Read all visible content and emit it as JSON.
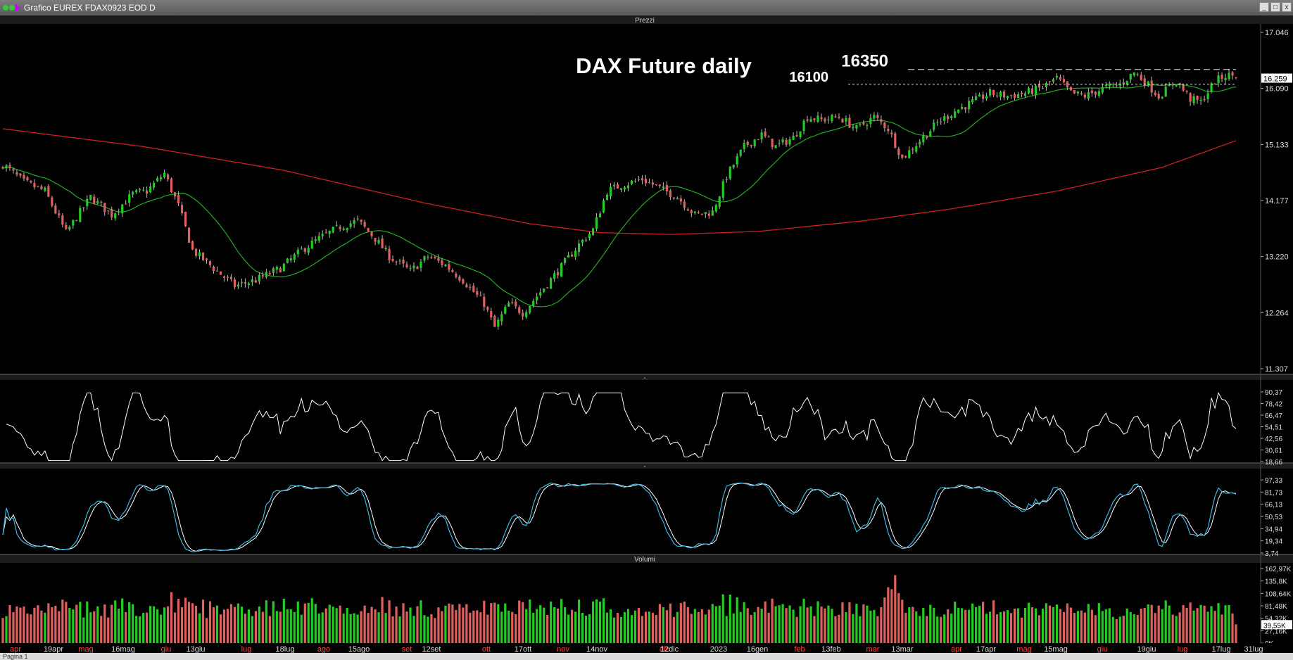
{
  "window": {
    "title": "Grafico EUREX FDAX0923 EOD D",
    "controls": [
      "_",
      "□",
      "x"
    ]
  },
  "panels": {
    "price": {
      "label": "Prezzi"
    },
    "rsi": {
      "label": "-"
    },
    "stoch": {
      "label": "-"
    },
    "volume": {
      "label": "Volumi"
    }
  },
  "statusbar": {
    "page_label": "Pagina 1"
  },
  "colors": {
    "bull": "#22cc22",
    "bear": "#e06060",
    "ma_short": "#22aa22",
    "ma_long": "#cc2020",
    "rsi": "#ffffff",
    "stoch_k": "#3ab8e0",
    "stoch_d": "#ffffff",
    "background": "#000000"
  },
  "chart_data": [
    {
      "type": "candlestick",
      "title": "DAX Future daily",
      "y_ticks": [
        17046,
        16090,
        15133,
        14177,
        13220,
        12264,
        11307
      ],
      "y_tick_labels": [
        "17.046",
        "16.090",
        "15.133",
        "14.177",
        "13.220",
        "12.264",
        "11.307"
      ],
      "ylim": [
        11307,
        17046
      ],
      "last_price_label": "16.259",
      "last_price": 16259,
      "annotations": [
        {
          "text": "16350",
          "value": 16350,
          "style": "dashed"
        },
        {
          "text": "16100",
          "value": 16100,
          "style": "dashed"
        }
      ],
      "x_labels": [
        {
          "text": "apr",
          "color": "red"
        },
        {
          "text": "19apr",
          "color": "white"
        },
        {
          "text": "mag",
          "color": "red"
        },
        {
          "text": "16mag",
          "color": "white"
        },
        {
          "text": "giu",
          "color": "red"
        },
        {
          "text": "13giu",
          "color": "white"
        },
        {
          "text": "lug",
          "color": "red"
        },
        {
          "text": "18lug",
          "color": "white"
        },
        {
          "text": "ago",
          "color": "red"
        },
        {
          "text": "15ago",
          "color": "white"
        },
        {
          "text": "set",
          "color": "red"
        },
        {
          "text": "12set",
          "color": "white"
        },
        {
          "text": "ott",
          "color": "red"
        },
        {
          "text": "17ott",
          "color": "white"
        },
        {
          "text": "nov",
          "color": "red"
        },
        {
          "text": "14nov",
          "color": "white"
        },
        {
          "text": "dic",
          "color": "red"
        },
        {
          "text": "12dic",
          "color": "white"
        },
        {
          "text": "2023",
          "color": "white"
        },
        {
          "text": "16gen",
          "color": "white"
        },
        {
          "text": "feb",
          "color": "red"
        },
        {
          "text": "13feb",
          "color": "white"
        },
        {
          "text": "mar",
          "color": "red"
        },
        {
          "text": "13mar",
          "color": "white"
        },
        {
          "text": "apr",
          "color": "red"
        },
        {
          "text": "17apr",
          "color": "white"
        },
        {
          "text": "mag",
          "color": "red"
        },
        {
          "text": "15mag",
          "color": "white"
        },
        {
          "text": "giu",
          "color": "red"
        },
        {
          "text": "19giu",
          "color": "white"
        },
        {
          "text": "lug",
          "color": "red"
        },
        {
          "text": "17lug",
          "color": "white"
        },
        {
          "text": "31lug",
          "color": "white"
        }
      ],
      "close_anchors": [
        [
          0,
          14750
        ],
        [
          6,
          14450
        ],
        [
          12,
          14300
        ],
        [
          18,
          13600
        ],
        [
          25,
          14200
        ],
        [
          31,
          13900
        ],
        [
          37,
          14250
        ],
        [
          41,
          14300
        ],
        [
          46,
          14600
        ],
        [
          50,
          14050
        ],
        [
          54,
          13300
        ],
        [
          60,
          13000
        ],
        [
          66,
          12700
        ],
        [
          72,
          12800
        ],
        [
          79,
          13000
        ],
        [
          85,
          13300
        ],
        [
          90,
          13500
        ],
        [
          96,
          13700
        ],
        [
          101,
          13800
        ],
        [
          106,
          13500
        ],
        [
          110,
          13200
        ],
        [
          116,
          12950
        ],
        [
          121,
          13200
        ],
        [
          126,
          13050
        ],
        [
          131,
          12800
        ],
        [
          137,
          12400
        ],
        [
          140,
          12000
        ],
        [
          144,
          12400
        ],
        [
          148,
          12250
        ],
        [
          153,
          12600
        ],
        [
          158,
          12950
        ],
        [
          164,
          13400
        ],
        [
          168,
          13650
        ],
        [
          172,
          14300
        ],
        [
          176,
          14400
        ],
        [
          182,
          14500
        ],
        [
          187,
          14350
        ],
        [
          192,
          14200
        ],
        [
          197,
          13900
        ],
        [
          202,
          13950
        ],
        [
          206,
          14550
        ],
        [
          211,
          15050
        ],
        [
          216,
          15250
        ],
        [
          220,
          15050
        ],
        [
          225,
          15200
        ],
        [
          229,
          15550
        ],
        [
          233,
          15500
        ],
        [
          238,
          15550
        ],
        [
          243,
          15350
        ],
        [
          248,
          15550
        ],
        [
          252,
          15350
        ],
        [
          256,
          14850
        ],
        [
          261,
          15150
        ],
        [
          266,
          15450
        ],
        [
          271,
          15650
        ],
        [
          276,
          15800
        ],
        [
          281,
          15950
        ],
        [
          286,
          15900
        ],
        [
          291,
          15950
        ],
        [
          296,
          16050
        ],
        [
          300,
          16200
        ],
        [
          304,
          15950
        ],
        [
          308,
          15900
        ],
        [
          314,
          16050
        ],
        [
          318,
          16100
        ],
        [
          322,
          16300
        ],
        [
          325,
          16150
        ],
        [
          329,
          15900
        ],
        [
          334,
          16150
        ],
        [
          338,
          15850
        ],
        [
          341,
          15800
        ],
        [
          345,
          16150
        ],
        [
          348,
          16250
        ],
        [
          351,
          16250
        ]
      ],
      "ma_long_anchors": [
        [
          0,
          15350
        ],
        [
          40,
          15050
        ],
        [
          80,
          14650
        ],
        [
          120,
          14100
        ],
        [
          150,
          13750
        ],
        [
          170,
          13600
        ],
        [
          190,
          13570
        ],
        [
          215,
          13620
        ],
        [
          245,
          13800
        ],
        [
          270,
          14000
        ],
        [
          300,
          14300
        ],
        [
          330,
          14700
        ],
        [
          351,
          15150
        ]
      ]
    },
    {
      "type": "line",
      "title": "",
      "y_ticks": [
        90.37,
        78.42,
        66.47,
        54.51,
        42.56,
        30.61,
        18.66
      ],
      "y_tick_labels": [
        "90,37",
        "78,42",
        "66,47",
        "54,51",
        "42,56",
        "30,61",
        "18,66"
      ],
      "ylim": [
        18.66,
        90.37
      ],
      "series": [
        {
          "name": "",
          "seed": 11
        }
      ]
    },
    {
      "type": "line",
      "title": "",
      "y_ticks": [
        97.33,
        81.73,
        66.13,
        50.53,
        34.94,
        19.34,
        3.74
      ],
      "y_tick_labels": [
        "97,33",
        "81,73",
        "66,13",
        "50,53",
        "34,94",
        "19,34",
        "3,74"
      ],
      "ylim": [
        3.74,
        97.33
      ],
      "series": [
        {
          "name": ""
        },
        {
          "name": ""
        }
      ]
    },
    {
      "type": "bar",
      "title": "",
      "y_ticks": [
        162970,
        135800,
        108640,
        81480,
        54320,
        27160,
        0
      ],
      "y_tick_labels": [
        "162,97K",
        "135,8K",
        "108,64K",
        "81,48K",
        "54,32K",
        "27,16K",
        "0K"
      ],
      "last_value_label": "39,55K",
      "last_value": 39550,
      "ylim": [
        0,
        162970
      ]
    }
  ]
}
